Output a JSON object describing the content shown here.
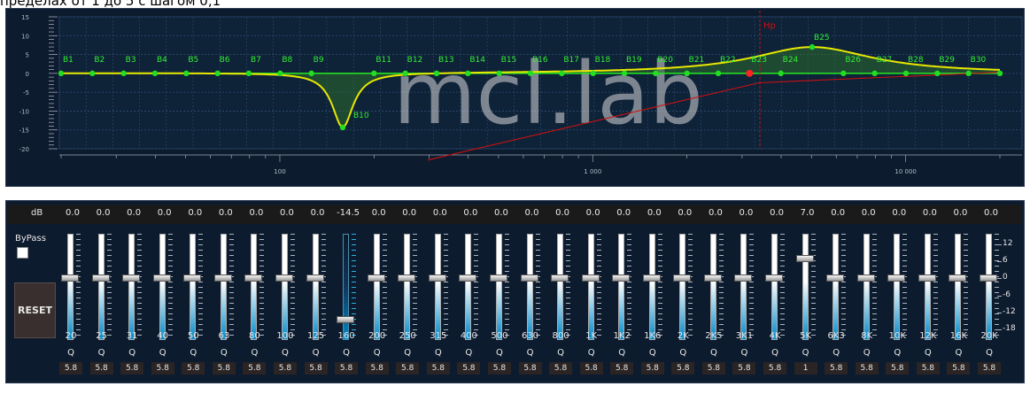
{
  "caption": "пределах от 1 до 5 с шагом 0,1",
  "graph": {
    "y_ticks": [
      "15",
      "10",
      "5",
      "0",
      "-5",
      "-10",
      "-15",
      "-20"
    ],
    "x_ticks": [
      "100",
      "1 000",
      "10 000"
    ],
    "watermark": "mcl.lab",
    "hp_label": "Hp",
    "band_labels": [
      "B1",
      "B2",
      "B3",
      "B4",
      "B5",
      "B6",
      "B7",
      "B8",
      "B9",
      "B10",
      "B11",
      "B12",
      "B13",
      "B14",
      "B15",
      "B16",
      "B17",
      "B18",
      "B19",
      "B20",
      "B21",
      "B22",
      "B23",
      "B24",
      "B25",
      "B26",
      "B27",
      "B28",
      "B29",
      "B30"
    ],
    "colors": {
      "curve": "#e8e800",
      "band_point": "#22dd22",
      "band_label": "#33ee33",
      "hp_line": "#cc1111",
      "fill": "#2e6b2e"
    }
  },
  "eq": {
    "db_label": "dB",
    "bypass_label": "ByPass",
    "reset_label": "RESET",
    "q_label": "Q",
    "gain_range": [
      -18,
      12
    ],
    "scale": [
      "12",
      "6",
      "0",
      "-6",
      "-12",
      "-18"
    ],
    "bands": [
      {
        "freq": "20",
        "gain": 0,
        "db": "0.0",
        "q": "5.8"
      },
      {
        "freq": "25",
        "gain": 0,
        "db": "0.0",
        "q": "5.8"
      },
      {
        "freq": "31",
        "gain": 0,
        "db": "0.0",
        "q": "5.8"
      },
      {
        "freq": "40",
        "gain": 0,
        "db": "0.0",
        "q": "5.8"
      },
      {
        "freq": "50",
        "gain": 0,
        "db": "0.0",
        "q": "5.8"
      },
      {
        "freq": "63",
        "gain": 0,
        "db": "0.0",
        "q": "5.8"
      },
      {
        "freq": "80",
        "gain": 0,
        "db": "0.0",
        "q": "5.8"
      },
      {
        "freq": "100",
        "gain": 0,
        "db": "0.0",
        "q": "5.8"
      },
      {
        "freq": "125",
        "gain": 0,
        "db": "0.0",
        "q": "5.8"
      },
      {
        "freq": "160",
        "gain": -14.5,
        "db": "-14.5",
        "q": "5.8",
        "active": true
      },
      {
        "freq": "200",
        "gain": 0,
        "db": "0.0",
        "q": "5.8"
      },
      {
        "freq": "250",
        "gain": 0,
        "db": "0.0",
        "q": "5.8"
      },
      {
        "freq": "315",
        "gain": 0,
        "db": "0.0",
        "q": "5.8"
      },
      {
        "freq": "400",
        "gain": 0,
        "db": "0.0",
        "q": "5.8"
      },
      {
        "freq": "500",
        "gain": 0,
        "db": "0.0",
        "q": "5.8"
      },
      {
        "freq": "630",
        "gain": 0,
        "db": "0.0",
        "q": "5.8"
      },
      {
        "freq": "800",
        "gain": 0,
        "db": "0.0",
        "q": "5.8"
      },
      {
        "freq": "1K",
        "gain": 0,
        "db": "0.0",
        "q": "5.8"
      },
      {
        "freq": "1K2",
        "gain": 0,
        "db": "0.0",
        "q": "5.8"
      },
      {
        "freq": "1K6",
        "gain": 0,
        "db": "0.0",
        "q": "5.8"
      },
      {
        "freq": "2K",
        "gain": 0,
        "db": "0.0",
        "q": "5.8"
      },
      {
        "freq": "2K5",
        "gain": 0,
        "db": "0.0",
        "q": "5.8"
      },
      {
        "freq": "3K1",
        "gain": 0,
        "db": "0.0",
        "q": "5.8"
      },
      {
        "freq": "4K",
        "gain": 0,
        "db": "0.0",
        "q": "5.8"
      },
      {
        "freq": "5K",
        "gain": 7,
        "db": "7.0",
        "q": "1"
      },
      {
        "freq": "6K3",
        "gain": 0,
        "db": "0.0",
        "q": "5.8"
      },
      {
        "freq": "8K",
        "gain": 0,
        "db": "0.0",
        "q": "5.8"
      },
      {
        "freq": "10K",
        "gain": 0,
        "db": "0.0",
        "q": "5.8"
      },
      {
        "freq": "12K",
        "gain": 0,
        "db": "0.0",
        "q": "5.8"
      },
      {
        "freq": "16K",
        "gain": 0,
        "db": "0.0",
        "q": "5.8"
      },
      {
        "freq": "20K",
        "gain": 0,
        "db": "0.0",
        "q": "5.8"
      }
    ]
  }
}
